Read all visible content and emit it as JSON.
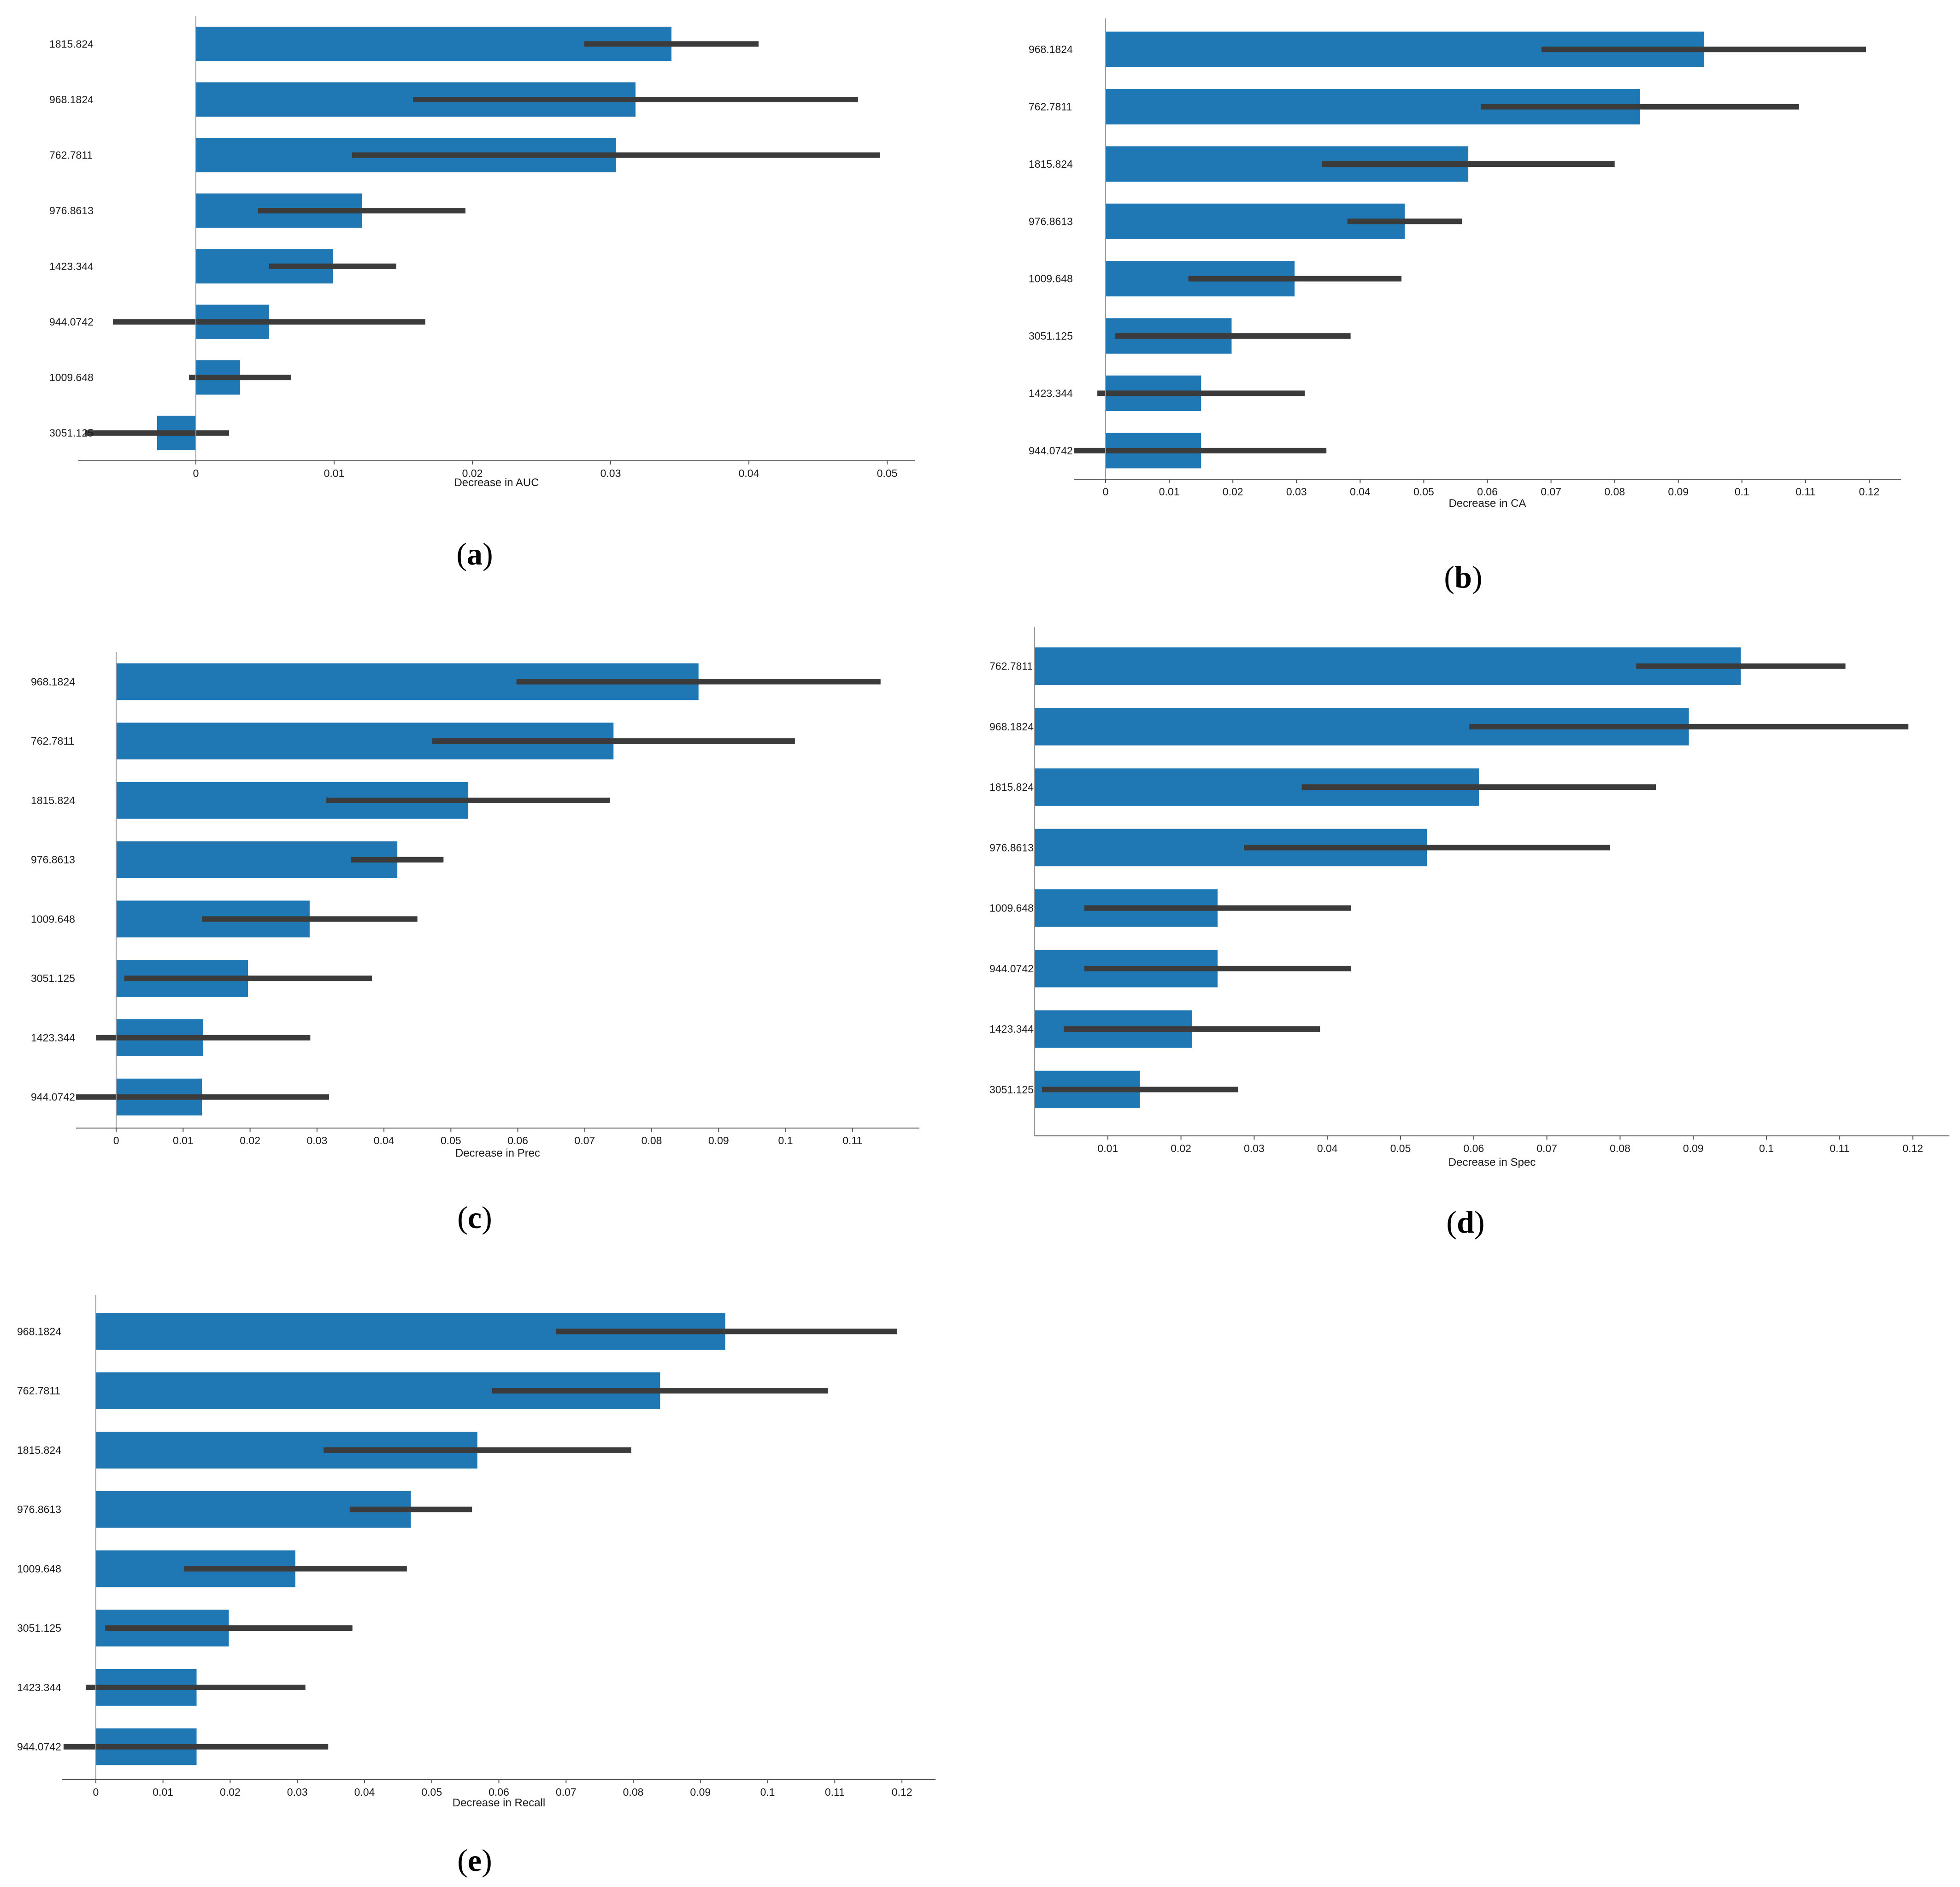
{
  "colors": {
    "bar": "#1f77b4",
    "error_bar": "#3b3b3b",
    "axis": "#9a9a9a"
  },
  "chart_data": [
    {
      "type": "bar",
      "orientation": "horizontal",
      "panel_label": "a",
      "xlabel": "Decrease in AUC",
      "xlim": [
        -0.0085,
        0.052
      ],
      "xticks": [
        0,
        0.01,
        0.02,
        0.03,
        0.04,
        0.05
      ],
      "xtick_labels": [
        "0",
        "0.01",
        "0.02",
        "0.03",
        "0.04",
        "0.05"
      ],
      "categories": [
        "1815.824",
        "968.1824",
        "762.7811",
        "976.8613",
        "1423.344",
        "944.0742",
        "1009.648",
        "3051.125"
      ],
      "values": [
        0.0344,
        0.0318,
        0.0304,
        0.012,
        0.0099,
        0.0053,
        0.0032,
        -0.0028
      ],
      "err_low": [
        0.0281,
        0.0157,
        0.0113,
        0.0045,
        0.0053,
        -0.006,
        -0.0005,
        -0.008
      ],
      "err_high": [
        0.0407,
        0.0479,
        0.0495,
        0.0195,
        0.0145,
        0.0166,
        0.0069,
        0.0024
      ]
    },
    {
      "type": "bar",
      "orientation": "horizontal",
      "panel_label": "b",
      "xlabel": "Decrease in CA",
      "xlim": [
        -0.005,
        0.125
      ],
      "xticks": [
        0,
        0.01,
        0.02,
        0.03,
        0.04,
        0.05,
        0.06,
        0.07,
        0.08,
        0.09,
        0.1,
        0.11,
        0.12
      ],
      "xtick_labels": [
        "0",
        "0.01",
        "0.02",
        "0.03",
        "0.04",
        "0.05",
        "0.06",
        "0.07",
        "0.08",
        "0.09",
        "0.1",
        "0.11",
        "0.12"
      ],
      "categories": [
        "968.1824",
        "762.7811",
        "1815.824",
        "976.8613",
        "1009.648",
        "3051.125",
        "1423.344",
        "944.0742"
      ],
      "values": [
        0.094,
        0.084,
        0.057,
        0.047,
        0.0297,
        0.0198,
        0.015,
        0.015
      ],
      "err_low": [
        0.0685,
        0.059,
        0.034,
        0.038,
        0.013,
        0.0015,
        -0.0013,
        -0.005
      ],
      "err_high": [
        0.1195,
        0.109,
        0.08,
        0.056,
        0.0465,
        0.0385,
        0.0313,
        0.0347
      ]
    },
    {
      "type": "bar",
      "orientation": "horizontal",
      "panel_label": "c",
      "xlabel": "Decrease in Prec",
      "xlim": [
        -0.006,
        0.12
      ],
      "xticks": [
        0,
        0.01,
        0.02,
        0.03,
        0.04,
        0.05,
        0.06,
        0.07,
        0.08,
        0.09,
        0.1,
        0.11
      ],
      "xtick_labels": [
        "0",
        "0.01",
        "0.02",
        "0.03",
        "0.04",
        "0.05",
        "0.06",
        "0.07",
        "0.08",
        "0.09",
        "0.1",
        "0.11"
      ],
      "categories": [
        "968.1824",
        "762.7811",
        "1815.824",
        "976.8613",
        "1009.648",
        "3051.125",
        "1423.344",
        "944.0742"
      ],
      "values": [
        0.087,
        0.0743,
        0.0526,
        0.042,
        0.0289,
        0.0197,
        0.013,
        0.0128
      ],
      "err_low": [
        0.0598,
        0.0472,
        0.0314,
        0.0351,
        0.0128,
        0.0012,
        -0.003,
        -0.006
      ],
      "err_high": [
        0.1142,
        0.1014,
        0.0738,
        0.0489,
        0.045,
        0.0382,
        0.029,
        0.0318
      ]
    },
    {
      "type": "bar",
      "orientation": "horizontal",
      "panel_label": "d",
      "xlabel": "Decrease in Spec",
      "xlim": [
        0,
        0.125
      ],
      "xticks": [
        0.01,
        0.02,
        0.03,
        0.04,
        0.05,
        0.06,
        0.07,
        0.08,
        0.09,
        0.1,
        0.11,
        0.12
      ],
      "xtick_labels": [
        "0.01",
        "0.02",
        "0.03",
        "0.04",
        "0.05",
        "0.06",
        "0.07",
        "0.08",
        "0.09",
        "0.1",
        "0.11",
        "0.12"
      ],
      "categories": [
        "762.7811",
        "968.1824",
        "1815.824",
        "976.8613",
        "1009.648",
        "944.0742",
        "1423.344",
        "3051.125"
      ],
      "values": [
        0.0965,
        0.0894,
        0.0607,
        0.0536,
        0.025,
        0.025,
        0.0215,
        0.0144
      ],
      "err_low": [
        0.0822,
        0.0594,
        0.0365,
        0.0286,
        0.0068,
        0.0068,
        0.004,
        0.001
      ],
      "err_high": [
        0.1108,
        0.1194,
        0.0849,
        0.0786,
        0.0432,
        0.0432,
        0.039,
        0.0278
      ]
    },
    {
      "type": "bar",
      "orientation": "horizontal",
      "panel_label": "e",
      "xlabel": "Decrease in Recall",
      "xlim": [
        -0.005,
        0.125
      ],
      "xticks": [
        0,
        0.01,
        0.02,
        0.03,
        0.04,
        0.05,
        0.06,
        0.07,
        0.08,
        0.09,
        0.1,
        0.11,
        0.12
      ],
      "xtick_labels": [
        "0",
        "0.01",
        "0.02",
        "0.03",
        "0.04",
        "0.05",
        "0.06",
        "0.07",
        "0.08",
        "0.09",
        "0.1",
        "0.11",
        "0.12"
      ],
      "categories": [
        "968.1824",
        "762.7811",
        "1815.824",
        "976.8613",
        "1009.648",
        "3051.125",
        "1423.344",
        "944.0742"
      ],
      "values": [
        0.0937,
        0.084,
        0.0568,
        0.0469,
        0.0297,
        0.0198,
        0.015,
        0.015
      ],
      "err_low": [
        0.0685,
        0.059,
        0.0339,
        0.0378,
        0.0131,
        0.0014,
        -0.0015,
        -0.0048
      ],
      "err_high": [
        0.1193,
        0.109,
        0.0797,
        0.056,
        0.0463,
        0.0382,
        0.0312,
        0.0346
      ]
    }
  ]
}
